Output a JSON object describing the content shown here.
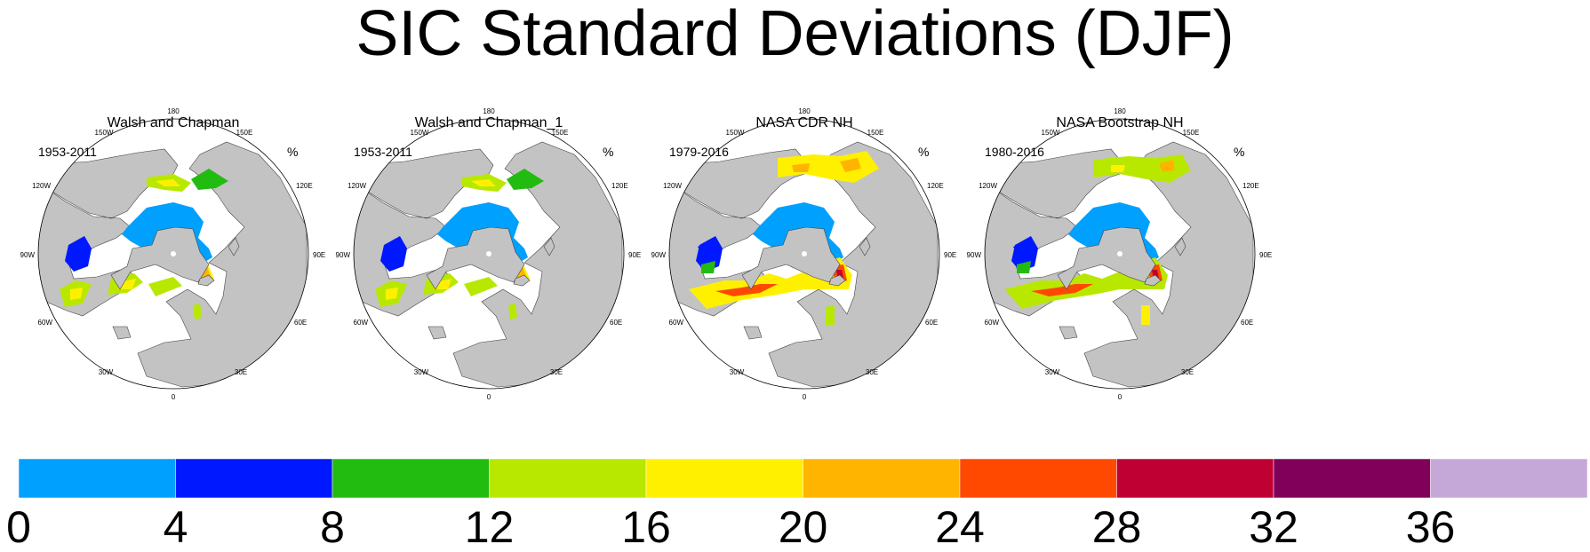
{
  "title": "SIC Standard Deviations (DJF)",
  "unit": "%",
  "panels": [
    {
      "title": "Walsh and Chapman",
      "period": "1953-2011",
      "dataset": "walsh"
    },
    {
      "title": "Walsh and Chapman_1",
      "period": "1953-2011",
      "dataset": "walsh"
    },
    {
      "title": "NASA CDR NH",
      "period": "1979-2016",
      "dataset": "cdr"
    },
    {
      "title": "NASA Bootstrap NH",
      "period": "1980-2016",
      "dataset": "bootstrap"
    }
  ],
  "map_labels": [
    "180",
    "150W",
    "150E",
    "120W",
    "120E",
    "90W",
    "90E",
    "60W",
    "60E",
    "30W",
    "30E",
    "0"
  ],
  "colorbar": {
    "labels": [
      "0",
      "4",
      "8",
      "12",
      "16",
      "20",
      "24",
      "28",
      "32",
      "36"
    ],
    "colors": [
      "#00a0ff",
      "#0018ff",
      "#22bb10",
      "#b8e800",
      "#fff000",
      "#ffb400",
      "#ff4800",
      "#be0032",
      "#80005a",
      "#c6a8d8"
    ]
  },
  "colors": {
    "land": "#c3c3c3",
    "ocean": "#ffffff",
    "ice": "#00a0ff"
  }
}
